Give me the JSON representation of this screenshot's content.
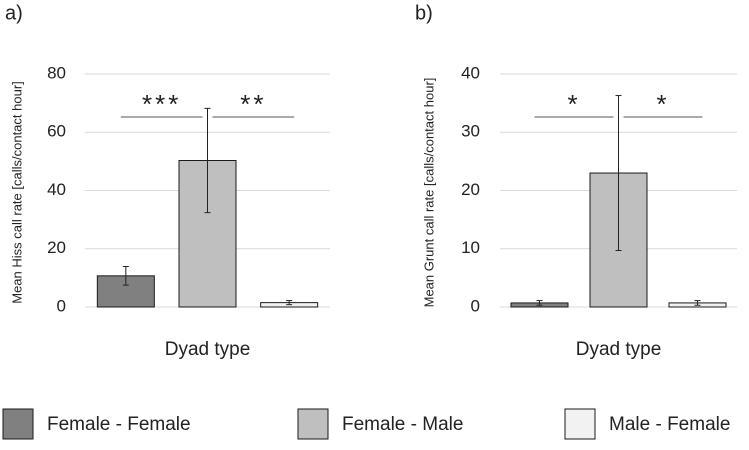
{
  "legend": {
    "items": [
      "Female - Female",
      "Female - Male",
      "Male - Female"
    ],
    "colors": [
      "#808080",
      "#bfbfbf",
      "#f2f2f2"
    ]
  },
  "chart_data": [
    {
      "type": "bar",
      "panel_label": "a)",
      "y_label": "Mean Hiss call rate [calls/contact hour]",
      "x_label": "Dyad type",
      "values": [
        10.7,
        50.3,
        1.5
      ],
      "errors": [
        3.2,
        17.9,
        0.7
      ],
      "ylim": [
        0,
        80
      ],
      "yticks": [
        0,
        20,
        40,
        60,
        80
      ],
      "grid": true,
      "annotations": [
        "***",
        "**"
      ]
    },
    {
      "type": "bar",
      "panel_label": "b)",
      "y_label": "Mean Grunt call rate [calls/contact hour]",
      "x_label": "Dyad type",
      "values": [
        0.7,
        23,
        0.7
      ],
      "errors": [
        0.4,
        13.3,
        0.4
      ],
      "ylim": [
        0,
        40
      ],
      "yticks": [
        0,
        10,
        20,
        30,
        40
      ],
      "grid": true,
      "annotations": [
        "*",
        "*"
      ]
    }
  ]
}
